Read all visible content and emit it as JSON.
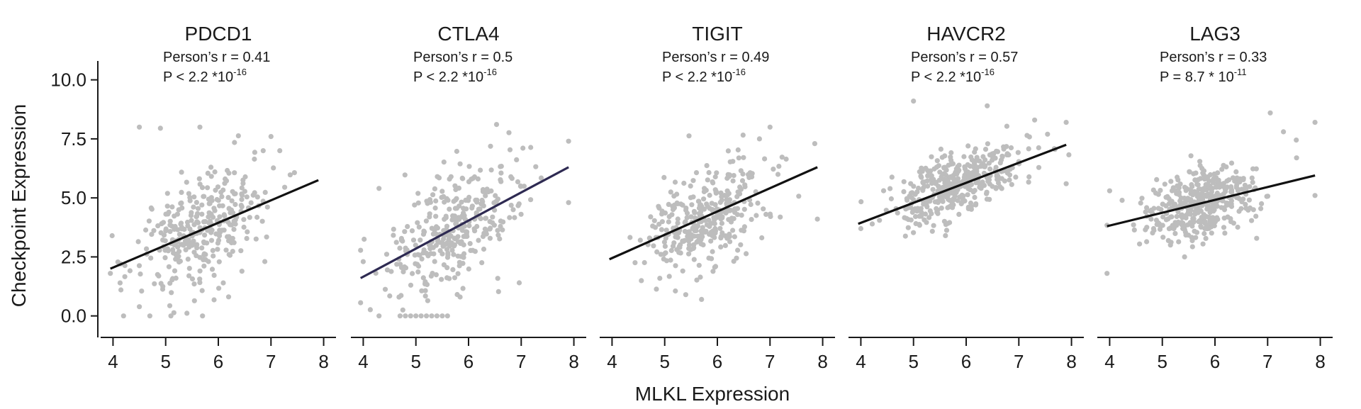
{
  "chart_data": {
    "type": "scatter",
    "ylabel": "Checkpoint Expression",
    "xlabel": "MLKL Expression",
    "xlim": [
      3.9,
      8.1
    ],
    "ylim": [
      -0.55,
      10.8
    ],
    "x_ticks": [
      4,
      5,
      6,
      7,
      8
    ],
    "y_ticks": [
      0.0,
      2.5,
      5.0,
      7.5,
      10.0
    ],
    "y_tick_labels": [
      "0.0",
      "2.5",
      "5.0",
      "7.5",
      "10.0"
    ],
    "panels": [
      {
        "title": "PDCD1",
        "stat_r": "Person’s r = 0.41",
        "stat_p": "P < 2.2 *10",
        "stat_p_exp": "-16",
        "fit": {
          "x": [
            3.95,
            7.9
          ],
          "y": [
            2.0,
            5.75
          ]
        },
        "fit_color": "#111111",
        "point_summary": {
          "n": 320,
          "x_mean": 5.7,
          "x_sd": 0.6,
          "y_mean": 3.6,
          "y_sd": 1.45
        },
        "outliers": [
          [
            4.5,
            8.0
          ],
          [
            4.9,
            7.95
          ],
          [
            5.65,
            8.0
          ],
          [
            7.0,
            7.6
          ],
          [
            4.2,
            0.0
          ],
          [
            4.7,
            0.0
          ],
          [
            5.1,
            0.0
          ],
          [
            5.7,
            0.0
          ],
          [
            3.95,
            1.8
          ],
          [
            4.15,
            1.1
          ]
        ]
      },
      {
        "title": "CTLA4",
        "stat_r": "Person’s r = 0.5",
        "stat_p": "P < 2.2 *10",
        "stat_p_exp": "-16",
        "fit": {
          "x": [
            3.95,
            7.9
          ],
          "y": [
            1.6,
            6.3
          ]
        },
        "fit_color": "#2e2a52",
        "point_summary": {
          "n": 330,
          "x_mean": 5.75,
          "x_sd": 0.65,
          "y_mean": 3.9,
          "y_sd": 1.5
        },
        "zero_row": [
          4.7,
          4.8,
          4.9,
          5.0,
          5.1,
          5.2,
          5.3,
          5.4,
          5.5,
          5.6
        ],
        "outliers": [
          [
            7.9,
            7.4
          ],
          [
            4.3,
            5.4
          ],
          [
            4.0,
            2.3
          ],
          [
            4.3,
            0.0
          ],
          [
            7.9,
            4.8
          ]
        ]
      },
      {
        "title": "TIGIT",
        "stat_r": "Person’s r = 0.49",
        "stat_p": "P < 2.2 *10",
        "stat_p_exp": "-16",
        "fit": {
          "x": [
            3.95,
            7.9
          ],
          "y": [
            2.4,
            6.3
          ]
        },
        "fit_color": "#111111",
        "point_summary": {
          "n": 330,
          "x_mean": 5.7,
          "x_sd": 0.6,
          "y_mean": 4.0,
          "y_sd": 1.25
        },
        "outliers": [
          [
            7.0,
            8.0
          ],
          [
            6.8,
            7.5
          ],
          [
            5.7,
            0.7
          ],
          [
            5.4,
            0.9
          ],
          [
            7.85,
            7.3
          ],
          [
            7.9,
            4.1
          ]
        ]
      },
      {
        "title": "HAVCR2",
        "stat_r": "Person’s r = 0.57",
        "stat_p": "P < 2.2 *10",
        "stat_p_exp": "-16",
        "fit": {
          "x": [
            3.95,
            7.9
          ],
          "y": [
            3.9,
            7.25
          ]
        },
        "fit_color": "#111111",
        "point_summary": {
          "n": 400,
          "x_mean": 5.85,
          "x_sd": 0.6,
          "y_mean": 5.4,
          "y_sd": 0.85
        },
        "outliers": [
          [
            5.0,
            9.1
          ],
          [
            6.4,
            8.9
          ],
          [
            7.9,
            8.2
          ],
          [
            7.3,
            8.3
          ],
          [
            4.0,
            3.7
          ],
          [
            7.9,
            5.6
          ]
        ]
      },
      {
        "title": "LAG3",
        "stat_r": "Person’s r = 0.33",
        "stat_p": "P = 8.7 * 10",
        "stat_p_exp": "-11",
        "fit": {
          "x": [
            3.95,
            7.9
          ],
          "y": [
            3.8,
            5.95
          ]
        },
        "fit_color": "#111111",
        "point_summary": {
          "n": 400,
          "x_mean": 5.75,
          "x_sd": 0.55,
          "y_mean": 4.6,
          "y_sd": 0.95
        },
        "outliers": [
          [
            7.05,
            8.6
          ],
          [
            7.9,
            8.2
          ],
          [
            7.3,
            7.8
          ],
          [
            3.95,
            1.8
          ],
          [
            4.0,
            5.3
          ],
          [
            7.9,
            5.1
          ]
        ]
      }
    ]
  }
}
